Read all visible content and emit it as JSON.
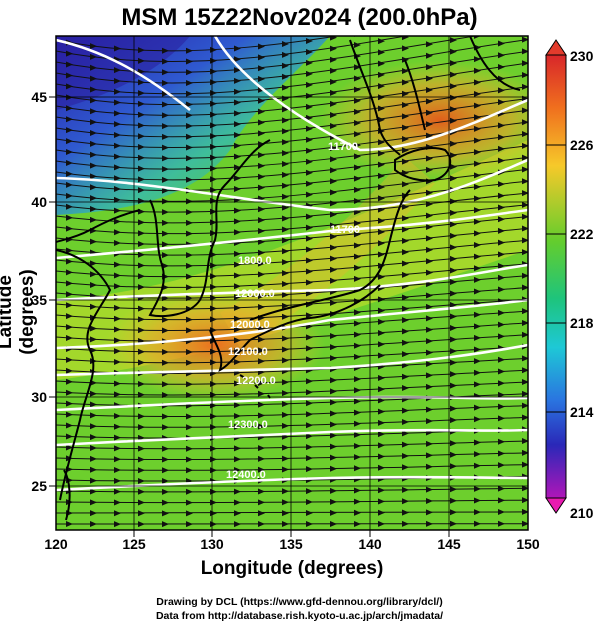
{
  "title": "MSM 15Z22Nov2024 (200.0hPa)",
  "axes": {
    "xlabel": "Longitude (degrees)",
    "ylabel": "Latitude  (degrees)",
    "xticks": [
      "120",
      "125",
      "130",
      "135",
      "140",
      "145",
      "150"
    ],
    "yticks": [
      "25",
      "30",
      "35",
      "40",
      "45"
    ]
  },
  "colorbar": {
    "min": 210,
    "max": 230,
    "labels": [
      "230",
      "226",
      "222",
      "218",
      "214",
      "210"
    ]
  },
  "contour_labels": [
    "11700",
    "11700",
    "1800.0",
    "12000.0",
    "12000.0",
    "12100.0",
    "12200.0",
    "12300.0",
    "12400.0"
  ],
  "credits": {
    "line1": "Drawing by DCL (https://www.gfd-dennou.org/library/dcl/)",
    "line2": "Data from http://database.rish.kyoto-u.ac.jp/arch/jmadata/"
  },
  "colors": {
    "high": "#e5591a",
    "mid": "#4fc734",
    "low": "#3a35c8"
  }
}
